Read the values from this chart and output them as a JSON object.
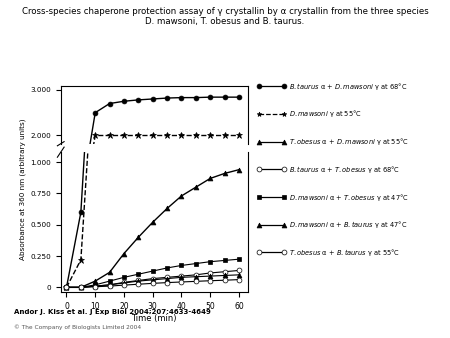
{
  "title": "Cross-species chaperone protection assay of γ crystallin by α crystallin from the three species\nD. mawsoni, T. obesus and B. taurus.",
  "xlabel": "Time (min)",
  "ylabel": "Absorbance at 360 nm (arbitrary units)",
  "citation": "Andor J. Kiss et al. J Exp Biol 2004;207:4633-4649",
  "copyright": "© The Company of Biologists Limited 2004",
  "time_points": [
    0,
    5,
    10,
    15,
    20,
    25,
    30,
    35,
    40,
    45,
    50,
    55,
    60
  ],
  "series": [
    {
      "label_it": [
        "B. taurus",
        "α + ",
        "D. mawsoni",
        " γ at 68°C"
      ],
      "color": "black",
      "linestyle": "-",
      "marker": "o",
      "markerfacecolor": "black",
      "markersize": 3.5,
      "linewidth": 1.0,
      "values": [
        0,
        0.6,
        2.5,
        2.7,
        2.75,
        2.78,
        2.8,
        2.82,
        2.83,
        2.83,
        2.84,
        2.84,
        2.84
      ]
    },
    {
      "label_it": [
        "D. mawsoni",
        " γ at 55°C"
      ],
      "color": "black",
      "linestyle": "--",
      "marker": "*",
      "markerfacecolor": "black",
      "markersize": 5,
      "linewidth": 1.0,
      "values": [
        0,
        0.22,
        2.0,
        2.0,
        2.0,
        2.0,
        2.0,
        2.0,
        2.0,
        2.0,
        2.0,
        2.0,
        2.0
      ]
    },
    {
      "label_it": [
        "T. obesus",
        " α + ",
        "D. mawsoni",
        " γ at 55°C"
      ],
      "color": "black",
      "linestyle": "-",
      "marker": "^",
      "markerfacecolor": "black",
      "markersize": 3.5,
      "linewidth": 1.0,
      "values": [
        0,
        0.0,
        0.05,
        0.12,
        0.27,
        0.4,
        0.52,
        0.63,
        0.73,
        0.8,
        0.87,
        0.91,
        0.94
      ]
    },
    {
      "label_it": [
        "B. taurus",
        " α + ",
        "T. obesus",
        " γ at 68°C"
      ],
      "color": "black",
      "linestyle": "-",
      "marker": "o",
      "markerfacecolor": "white",
      "markersize": 3.5,
      "linewidth": 0.8,
      "values": [
        0,
        0.0,
        0.01,
        0.02,
        0.04,
        0.055,
        0.07,
        0.08,
        0.09,
        0.1,
        0.115,
        0.125,
        0.135
      ]
    },
    {
      "label_it": [
        "D. mawsoni",
        " α + ",
        "T. obesus",
        " γ at 47°C"
      ],
      "color": "black",
      "linestyle": "-",
      "marker": "s",
      "markerfacecolor": "black",
      "markersize": 3.5,
      "linewidth": 0.8,
      "values": [
        0,
        0.0,
        0.02,
        0.05,
        0.08,
        0.105,
        0.13,
        0.155,
        0.175,
        0.19,
        0.205,
        0.215,
        0.225
      ]
    },
    {
      "label_it": [
        "D. mawsoni",
        " α + ",
        "B. taurus",
        " γ at 47°C"
      ],
      "color": "black",
      "linestyle": "-",
      "marker": "^",
      "markerfacecolor": "black",
      "markersize": 3.5,
      "linewidth": 0.8,
      "values": [
        0,
        0.0,
        0.01,
        0.02,
        0.035,
        0.05,
        0.06,
        0.07,
        0.08,
        0.085,
        0.09,
        0.095,
        0.1
      ]
    },
    {
      "label_it": [
        "T. obesus",
        " α + ",
        "B. taurus",
        " γ at 55°C"
      ],
      "color": "black",
      "linestyle": "-",
      "marker": "o",
      "markerfacecolor": "white",
      "markersize": 3.5,
      "linewidth": 0.8,
      "values": [
        0,
        0.0,
        0.005,
        0.01,
        0.018,
        0.025,
        0.032,
        0.038,
        0.043,
        0.048,
        0.053,
        0.057,
        0.062
      ]
    }
  ],
  "legend_entries": [
    {
      "line": "-",
      "marker": "o",
      "mfc": "black",
      "text": "$\\it{B. taurus}$ α + $\\it{D. mawsoni}$ γ at 68°C"
    },
    {
      "line": "--",
      "marker": "*",
      "mfc": "black",
      "text": "$\\it{D. mawsoni}$ γ at 55°C"
    },
    {
      "line": "-",
      "marker": "^",
      "mfc": "black",
      "text": "$\\it{T. obesus}$ α + $\\it{D. mawsoni}$ γ at 55°C"
    },
    {
      "line": "-",
      "marker": "o",
      "mfc": "white",
      "text": "$\\it{B. taurus}$ α + $\\it{T. obesus}$ γ at 68°C"
    },
    {
      "line": "-",
      "marker": "s",
      "mfc": "black",
      "text": "$\\it{D. mawsoni}$ α + $\\it{T. obesus}$ γ at 47°C"
    },
    {
      "line": "-",
      "marker": "^",
      "mfc": "black",
      "text": "$\\it{D. mawsoni}$ α + $\\it{B. taurus}$ γ at 47°C"
    },
    {
      "line": "-",
      "marker": "o",
      "mfc": "white",
      "text": "$\\it{T. obesus}$ α + $\\it{B. taurus}$ γ at 55°C"
    }
  ],
  "xticks": [
    0,
    10,
    20,
    30,
    40,
    50,
    60
  ],
  "xlim": [
    -2,
    63
  ]
}
